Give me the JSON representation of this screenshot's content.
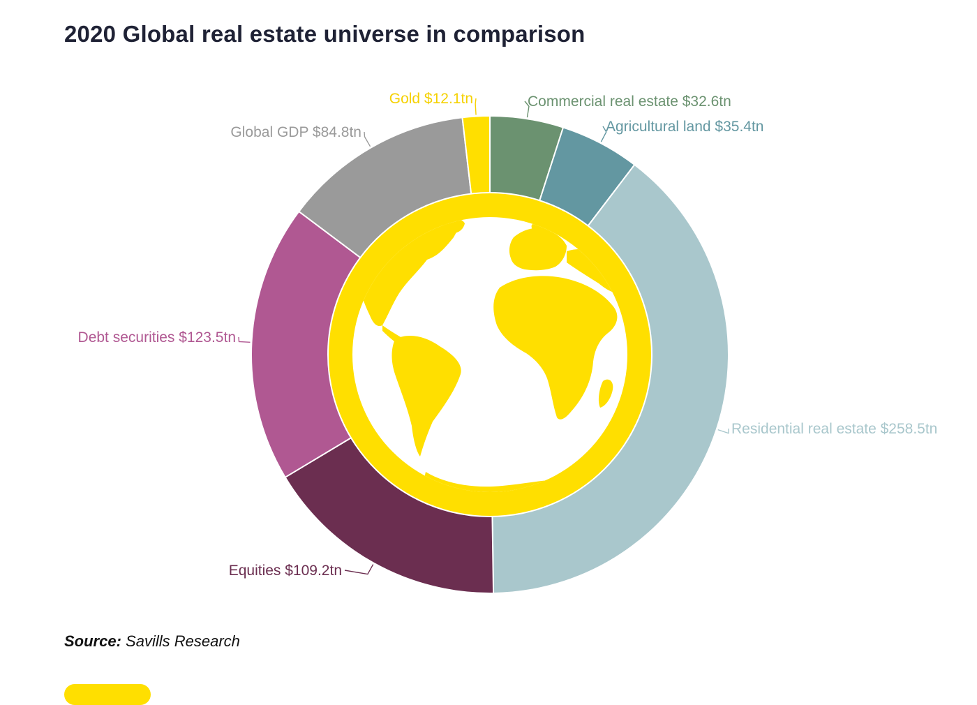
{
  "title": "2020 Global real estate universe in comparison",
  "source": {
    "prefix": "Source:",
    "text": "Savills Research"
  },
  "chart_data": {
    "type": "pie",
    "variant": "donut",
    "title": "2020 Global real estate universe in comparison",
    "unit": "US$ trillion",
    "start_angle_deg": 0,
    "direction": "clockwise",
    "center_graphic": "globe",
    "slices": [
      {
        "name": "Commercial real estate",
        "label": "Commercial real estate $32.6tn",
        "value": 32.6,
        "color": "#6b9270",
        "label_side": "right",
        "label_color": "#6b9270"
      },
      {
        "name": "Agricultural land",
        "label": "Agricultural land $35.4tn",
        "value": 35.4,
        "color": "#6397a1",
        "label_side": "right",
        "label_color": "#6397a1"
      },
      {
        "name": "Residential real estate",
        "label": "Residential real estate $258.5tn",
        "value": 258.5,
        "color": "#a9c7cc",
        "label_side": "right",
        "label_color": "#a9c7cc"
      },
      {
        "name": "Equities",
        "label": "Equities $109.2tn",
        "value": 109.2,
        "color": "#6b2e50",
        "label_side": "left",
        "label_color": "#6b2e50"
      },
      {
        "name": "Debt securities",
        "label": "Debt securities $123.5tn",
        "value": 123.5,
        "color": "#b05892",
        "label_side": "left",
        "label_color": "#b05892"
      },
      {
        "name": "Global GDP",
        "label": "Global GDP $84.8tn",
        "value": 84.8,
        "color": "#9a9a9a",
        "label_side": "left",
        "label_color": "#9a9a9a"
      },
      {
        "name": "Gold",
        "label": "Gold $12.1tn",
        "value": 12.1,
        "color": "#ffdf00",
        "label_side": "left",
        "label_color": "#f5d100"
      }
    ],
    "colors": {
      "ring_accent": "#ffdf00",
      "globe_ocean": "#ffffff",
      "globe_land": "#ffdf00"
    }
  }
}
